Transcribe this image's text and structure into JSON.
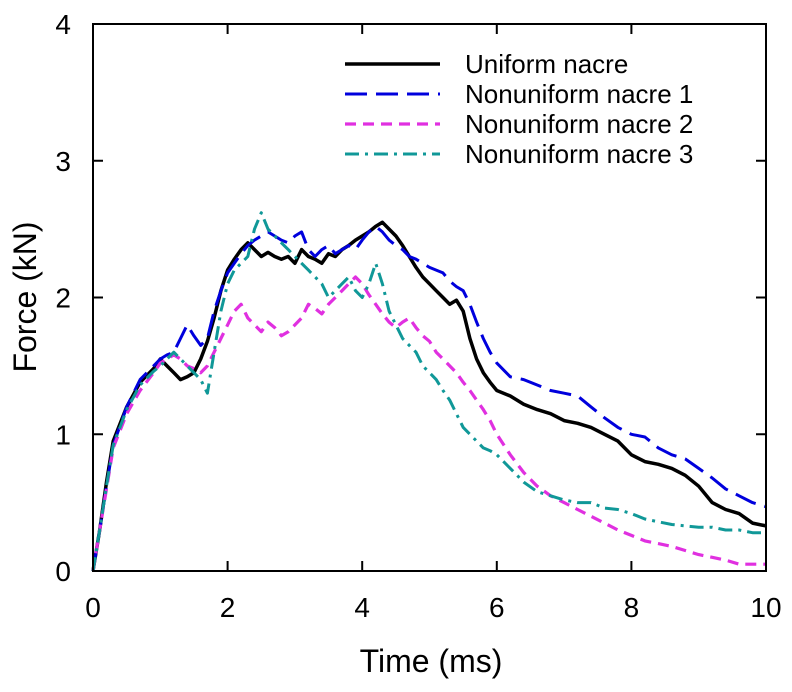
{
  "chart_data": {
    "type": "line",
    "title": "",
    "xlabel": "Time (ms)",
    "ylabel": "Force (kN)",
    "xlim": [
      0,
      10
    ],
    "ylim": [
      0,
      4
    ],
    "xticks": [
      "0",
      "2",
      "4",
      "6",
      "8",
      "10"
    ],
    "yticks": [
      "0",
      "1",
      "2",
      "3",
      "4"
    ],
    "grid": false,
    "legend_position": "top-right",
    "series": [
      {
        "name": "Uniform nacre",
        "color": "#000000",
        "dash": "solid",
        "x": [
          0.0,
          0.1,
          0.2,
          0.3,
          0.5,
          0.7,
          0.9,
          1.0,
          1.1,
          1.2,
          1.3,
          1.4,
          1.5,
          1.6,
          1.7,
          1.8,
          1.9,
          2.0,
          2.1,
          2.2,
          2.3,
          2.4,
          2.5,
          2.6,
          2.7,
          2.8,
          2.9,
          3.0,
          3.1,
          3.2,
          3.3,
          3.4,
          3.5,
          3.6,
          3.7,
          3.8,
          3.9,
          4.0,
          4.1,
          4.2,
          4.3,
          4.4,
          4.5,
          4.6,
          4.7,
          4.8,
          4.9,
          5.0,
          5.1,
          5.2,
          5.3,
          5.4,
          5.5,
          5.6,
          5.7,
          5.8,
          5.9,
          6.0,
          6.2,
          6.4,
          6.6,
          6.8,
          7.0,
          7.2,
          7.4,
          7.6,
          7.8,
          8.0,
          8.2,
          8.4,
          8.6,
          8.8,
          9.0,
          9.2,
          9.4,
          9.6,
          9.8,
          10.0
        ],
        "y": [
          0.0,
          0.3,
          0.65,
          0.95,
          1.2,
          1.38,
          1.48,
          1.55,
          1.5,
          1.45,
          1.4,
          1.42,
          1.45,
          1.55,
          1.68,
          1.85,
          2.05,
          2.2,
          2.28,
          2.35,
          2.4,
          2.35,
          2.3,
          2.33,
          2.3,
          2.28,
          2.3,
          2.25,
          2.35,
          2.3,
          2.28,
          2.25,
          2.32,
          2.3,
          2.35,
          2.38,
          2.42,
          2.45,
          2.48,
          2.52,
          2.55,
          2.5,
          2.45,
          2.38,
          2.3,
          2.22,
          2.15,
          2.1,
          2.05,
          2.0,
          1.95,
          1.98,
          1.9,
          1.7,
          1.55,
          1.45,
          1.38,
          1.32,
          1.28,
          1.22,
          1.18,
          1.15,
          1.1,
          1.08,
          1.05,
          1.0,
          0.95,
          0.85,
          0.8,
          0.78,
          0.75,
          0.7,
          0.62,
          0.5,
          0.45,
          0.42,
          0.35,
          0.33
        ]
      },
      {
        "name": "Nonuniform nacre 1",
        "color": "#0000dd",
        "dash": "long-dash",
        "x": [
          0.0,
          0.1,
          0.2,
          0.3,
          0.5,
          0.7,
          0.9,
          1.0,
          1.1,
          1.2,
          1.3,
          1.4,
          1.5,
          1.6,
          1.7,
          1.8,
          1.9,
          2.0,
          2.1,
          2.2,
          2.3,
          2.4,
          2.5,
          2.6,
          2.7,
          2.8,
          2.9,
          3.0,
          3.1,
          3.2,
          3.3,
          3.4,
          3.5,
          3.6,
          3.7,
          3.8,
          3.9,
          4.0,
          4.1,
          4.2,
          4.3,
          4.4,
          4.5,
          4.6,
          4.7,
          4.8,
          4.9,
          5.0,
          5.1,
          5.2,
          5.3,
          5.4,
          5.5,
          5.6,
          5.7,
          5.8,
          5.9,
          6.0,
          6.2,
          6.4,
          6.6,
          6.8,
          7.0,
          7.2,
          7.4,
          7.6,
          7.8,
          8.0,
          8.2,
          8.4,
          8.6,
          8.8,
          9.0,
          9.2,
          9.4,
          9.6,
          9.8,
          10.0
        ],
        "y": [
          0.0,
          0.3,
          0.62,
          0.92,
          1.2,
          1.4,
          1.5,
          1.55,
          1.58,
          1.6,
          1.7,
          1.8,
          1.72,
          1.65,
          1.7,
          1.9,
          2.05,
          2.18,
          2.25,
          2.32,
          2.38,
          2.42,
          2.45,
          2.48,
          2.45,
          2.42,
          2.4,
          2.45,
          2.48,
          2.35,
          2.3,
          2.35,
          2.38,
          2.32,
          2.35,
          2.38,
          2.35,
          2.42,
          2.48,
          2.52,
          2.48,
          2.42,
          2.38,
          2.35,
          2.3,
          2.28,
          2.25,
          2.22,
          2.2,
          2.18,
          2.12,
          2.08,
          2.05,
          1.95,
          1.82,
          1.7,
          1.6,
          1.52,
          1.42,
          1.4,
          1.36,
          1.32,
          1.3,
          1.28,
          1.2,
          1.12,
          1.05,
          1.0,
          0.98,
          0.9,
          0.85,
          0.82,
          0.75,
          0.68,
          0.6,
          0.55,
          0.5,
          0.47
        ]
      },
      {
        "name": "Nonuniform nacre 2",
        "color": "#e030e0",
        "dash": "short-dash",
        "x": [
          0.0,
          0.1,
          0.2,
          0.3,
          0.5,
          0.7,
          0.9,
          1.0,
          1.1,
          1.2,
          1.3,
          1.4,
          1.5,
          1.6,
          1.7,
          1.8,
          1.9,
          2.0,
          2.1,
          2.2,
          2.3,
          2.4,
          2.5,
          2.6,
          2.7,
          2.8,
          2.9,
          3.0,
          3.1,
          3.2,
          3.3,
          3.4,
          3.5,
          3.6,
          3.7,
          3.8,
          3.9,
          4.0,
          4.1,
          4.2,
          4.3,
          4.4,
          4.5,
          4.6,
          4.7,
          4.8,
          4.9,
          5.0,
          5.1,
          5.2,
          5.3,
          5.4,
          5.5,
          5.6,
          5.7,
          5.8,
          5.9,
          6.0,
          6.2,
          6.4,
          6.6,
          6.8,
          7.0,
          7.2,
          7.4,
          7.6,
          7.8,
          8.0,
          8.2,
          8.4,
          8.6,
          8.8,
          9.0,
          9.2,
          9.4,
          9.6,
          9.8,
          10.0
        ],
        "y": [
          0.0,
          0.3,
          0.6,
          0.9,
          1.15,
          1.32,
          1.45,
          1.52,
          1.55,
          1.58,
          1.55,
          1.5,
          1.48,
          1.45,
          1.5,
          1.6,
          1.7,
          1.8,
          1.9,
          1.95,
          1.85,
          1.8,
          1.75,
          1.82,
          1.78,
          1.72,
          1.75,
          1.8,
          1.85,
          1.95,
          1.92,
          1.88,
          1.95,
          2.0,
          2.05,
          2.1,
          2.15,
          2.1,
          2.02,
          1.95,
          1.88,
          1.82,
          1.78,
          1.82,
          1.85,
          1.78,
          1.72,
          1.68,
          1.6,
          1.55,
          1.5,
          1.45,
          1.38,
          1.32,
          1.25,
          1.18,
          1.1,
          1.0,
          0.85,
          0.72,
          0.62,
          0.55,
          0.5,
          0.45,
          0.4,
          0.35,
          0.3,
          0.26,
          0.22,
          0.2,
          0.18,
          0.15,
          0.12,
          0.1,
          0.08,
          0.05,
          0.05,
          0.05
        ]
      },
      {
        "name": "Nonuniform nacre 3",
        "color": "#109898",
        "dash": "dash-dot",
        "x": [
          0.0,
          0.1,
          0.2,
          0.3,
          0.5,
          0.7,
          0.9,
          1.0,
          1.1,
          1.2,
          1.3,
          1.4,
          1.5,
          1.6,
          1.7,
          1.8,
          1.9,
          2.0,
          2.1,
          2.2,
          2.3,
          2.4,
          2.5,
          2.6,
          2.7,
          2.8,
          2.9,
          3.0,
          3.1,
          3.2,
          3.3,
          3.4,
          3.5,
          3.6,
          3.7,
          3.8,
          3.9,
          4.0,
          4.1,
          4.2,
          4.3,
          4.4,
          4.5,
          4.6,
          4.7,
          4.8,
          4.9,
          5.0,
          5.1,
          5.2,
          5.3,
          5.4,
          5.5,
          5.6,
          5.7,
          5.8,
          5.9,
          6.0,
          6.2,
          6.4,
          6.6,
          6.8,
          7.0,
          7.2,
          7.4,
          7.6,
          7.8,
          8.0,
          8.2,
          8.4,
          8.6,
          8.8,
          9.0,
          9.2,
          9.4,
          9.6,
          9.8,
          10.0
        ],
        "y": [
          0.0,
          0.3,
          0.62,
          0.92,
          1.18,
          1.36,
          1.46,
          1.5,
          1.55,
          1.6,
          1.55,
          1.5,
          1.45,
          1.4,
          1.3,
          1.6,
          1.9,
          2.1,
          2.2,
          2.25,
          2.3,
          2.5,
          2.62,
          2.5,
          2.45,
          2.4,
          2.35,
          2.3,
          2.25,
          2.2,
          2.15,
          2.1,
          2.0,
          2.05,
          2.1,
          2.15,
          2.05,
          2.0,
          2.1,
          2.25,
          2.1,
          1.9,
          1.8,
          1.7,
          1.65,
          1.6,
          1.5,
          1.45,
          1.4,
          1.32,
          1.25,
          1.15,
          1.05,
          1.0,
          0.95,
          0.9,
          0.88,
          0.85,
          0.75,
          0.65,
          0.58,
          0.55,
          0.52,
          0.5,
          0.5,
          0.46,
          0.45,
          0.42,
          0.38,
          0.36,
          0.34,
          0.33,
          0.32,
          0.32,
          0.3,
          0.3,
          0.28,
          0.28
        ]
      }
    ]
  }
}
